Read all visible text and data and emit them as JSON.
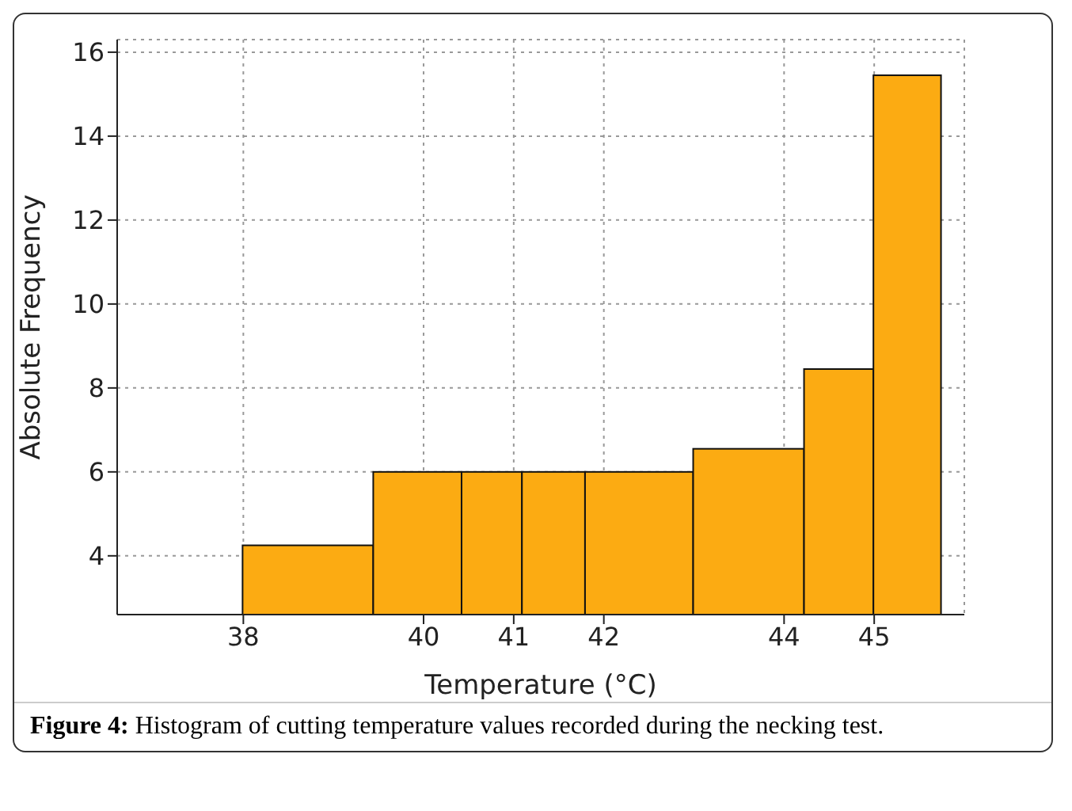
{
  "chart_data": {
    "type": "histogram",
    "xlabel": "Temperature (°C)",
    "ylabel": "Absolute Frequency",
    "bins": [
      38,
      39.45,
      40.43,
      41.1,
      41.8,
      43,
      44.23,
      45,
      45.75
    ],
    "values": [
      4.25,
      6,
      6,
      6,
      6,
      6.55,
      8.45,
      15.45
    ],
    "color": "#fcab12",
    "xlim": [
      36.6,
      46
    ],
    "xticks": [
      38,
      40,
      41,
      42,
      44,
      45
    ],
    "ylim": [
      2.6,
      16.3
    ],
    "yticks": [
      4,
      6,
      8,
      10,
      12,
      14,
      16
    ],
    "grid": true,
    "annotations": [
      "Figure 4: Histogram of cutting temperature values recorded during the necking test."
    ]
  }
}
